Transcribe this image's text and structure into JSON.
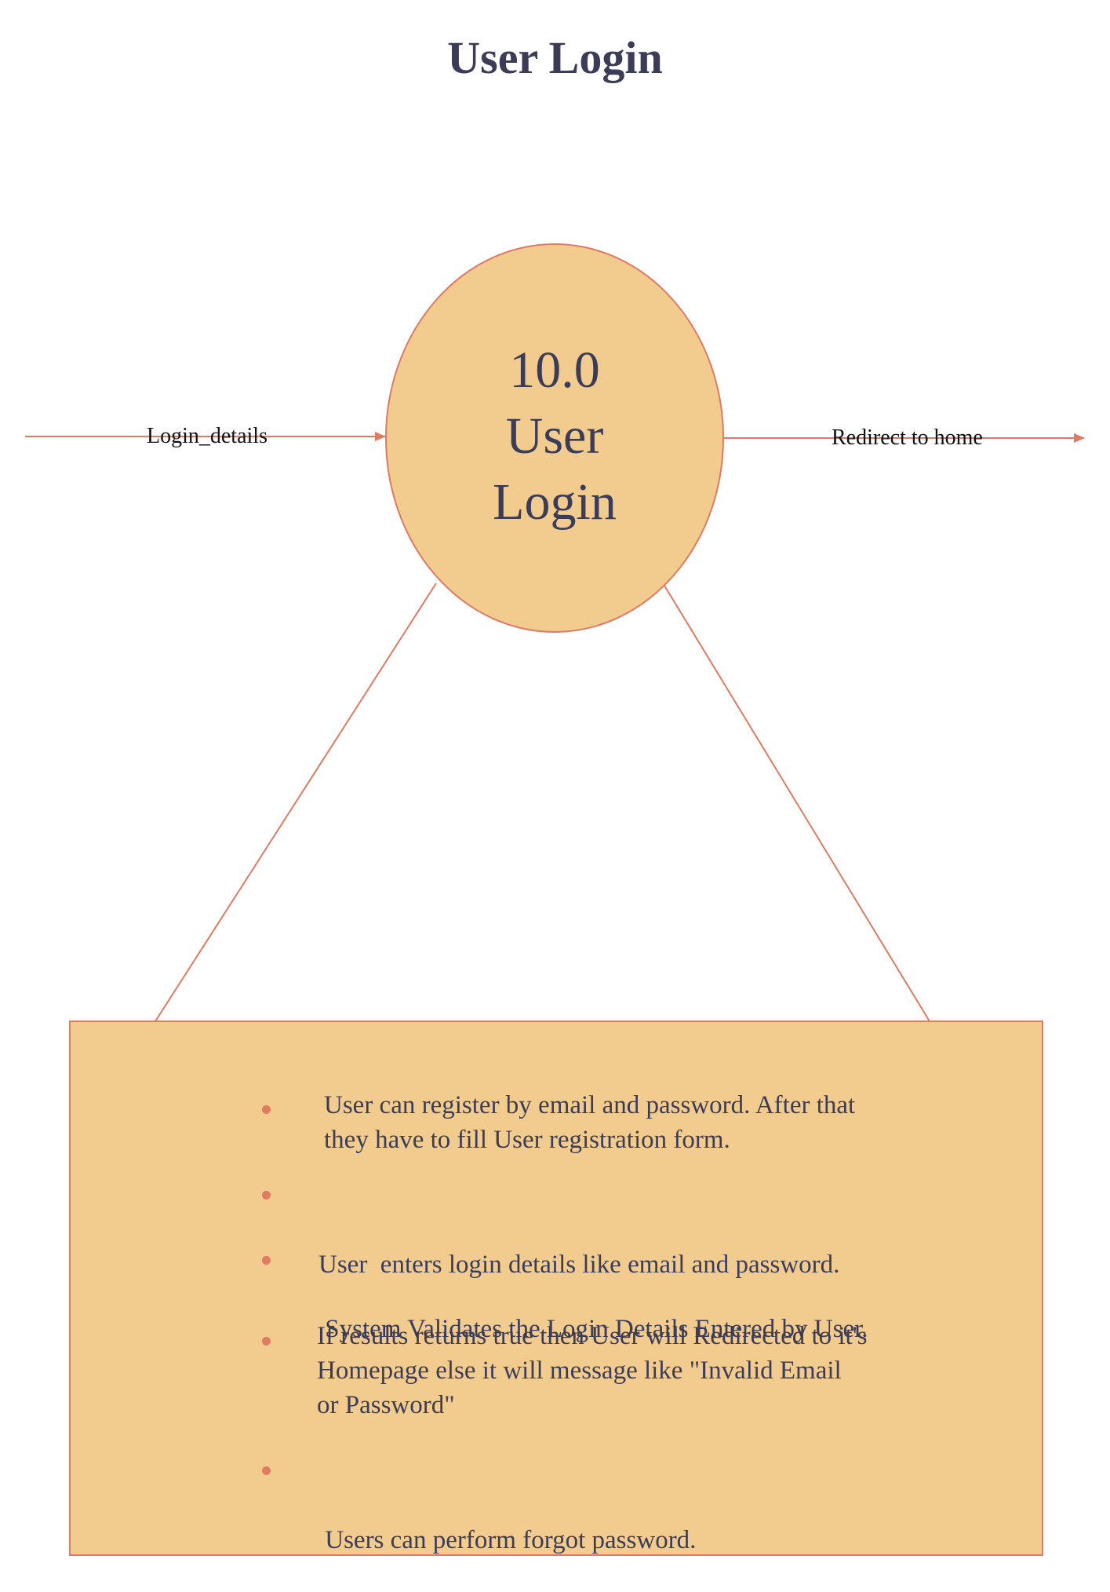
{
  "title": "User Login",
  "process": {
    "number": "10.0",
    "name_line1": "User",
    "name_line2": "Login"
  },
  "flows": {
    "input_label": "Login_details",
    "output_label": "Redirect to home"
  },
  "notes": {
    "items": [
      {
        "line1": "User can register by email and password. After that",
        "line2": "they have to fill User registration form."
      },
      {
        "line1": "User  enters login details like email and password."
      },
      {
        "line1": " System Validates the Login Details Entered by User."
      },
      {
        "line1": "If results returns true then User will Redirected to it's",
        "line2": "Homepage else it will message like \"Invalid Email",
        "line3": "or Password\""
      },
      {
        "line1": " Users can perform forgot password."
      }
    ]
  },
  "colors": {
    "fill": "#f2cb8f",
    "stroke": "#e07a62",
    "text": "#3b3d58"
  }
}
